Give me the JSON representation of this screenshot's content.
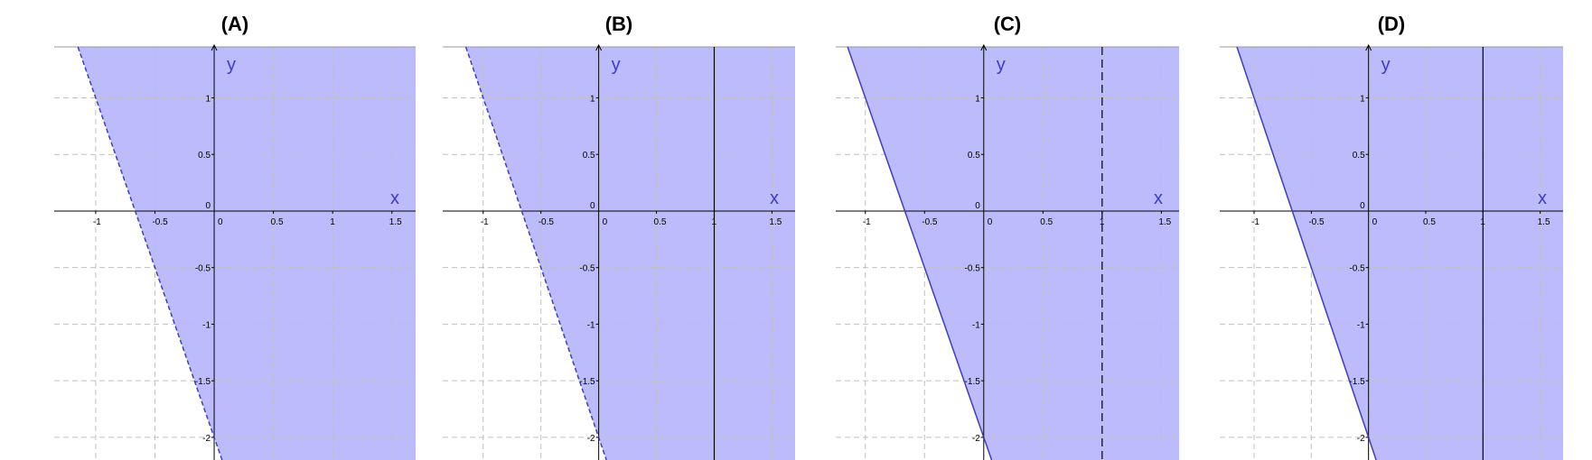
{
  "chart_data": [
    {
      "type": "area",
      "title": "(A)",
      "xlabel": "x",
      "ylabel": "y",
      "xlim": [
        -1.35,
        1.7
      ],
      "ylim": [
        -2.2,
        1.45
      ],
      "x_ticks": [
        "-1",
        "-0.5",
        "0",
        "0.5",
        "1",
        "1.5"
      ],
      "y_ticks": [
        "1",
        "0.5",
        "0",
        "-0.5",
        "-1",
        "-1.5",
        "-2"
      ],
      "x_tick_values": [
        -1,
        -0.5,
        0,
        0.5,
        1,
        1.5
      ],
      "y_tick_values": [
        1,
        0.5,
        0,
        -0.5,
        -1,
        -1.5,
        -2
      ],
      "grid": true,
      "boundary": {
        "slope": -3,
        "intercept": -2,
        "style": "dashed"
      },
      "shaded_region": "y > -3x - 2",
      "fill_color": "#bcbcfc",
      "boundary_color": "#3c3ccc"
    },
    {
      "type": "area",
      "title": "(B)",
      "xlabel": "x",
      "ylabel": "y",
      "xlim": [
        -1.35,
        1.7
      ],
      "ylim": [
        -2.2,
        1.45
      ],
      "x_ticks": [
        "-1",
        "-0.5",
        "0",
        "0.5",
        "1",
        "1.5"
      ],
      "y_ticks": [
        "1",
        "0.5",
        "0",
        "-0.5",
        "-1",
        "-1.5",
        "-2"
      ],
      "x_tick_values": [
        -1,
        -0.5,
        0,
        0.5,
        1,
        1.5
      ],
      "y_tick_values": [
        1,
        0.5,
        0,
        -0.5,
        -1,
        -1.5,
        -2
      ],
      "grid": true,
      "boundary": {
        "slope": -3,
        "intercept": -2,
        "style": "dashed"
      },
      "vertical_line": {
        "x": 1,
        "style": "solid"
      },
      "shaded_region": "y > -3x - 2",
      "fill_color": "#bcbcfc",
      "boundary_color": "#3c3ccc"
    },
    {
      "type": "area",
      "title": "(C)",
      "xlabel": "x",
      "ylabel": "y",
      "xlim": [
        -1.25,
        1.65
      ],
      "ylim": [
        -2.2,
        1.45
      ],
      "x_ticks": [
        "-1",
        "-0.5",
        "0",
        "0.5",
        "1",
        "1.5"
      ],
      "y_ticks": [
        "1",
        "0.5",
        "0",
        "-0.5",
        "-1",
        "-1.5",
        "-2"
      ],
      "x_tick_values": [
        -1,
        -0.5,
        0,
        0.5,
        1,
        1.5
      ],
      "y_tick_values": [
        1,
        0.5,
        0,
        -0.5,
        -1,
        -1.5,
        -2
      ],
      "grid": true,
      "boundary": {
        "slope": -3,
        "intercept": -2,
        "style": "solid"
      },
      "vertical_line": {
        "x": 1,
        "style": "dashed"
      },
      "shaded_region": "y >= -3x - 2",
      "fill_color": "#bcbcfc",
      "boundary_color": "#3c3ccc"
    },
    {
      "type": "area",
      "title": "(D)",
      "xlabel": "x",
      "ylabel": "y",
      "xlim": [
        -1.3,
        1.7
      ],
      "ylim": [
        -2.2,
        1.45
      ],
      "x_ticks": [
        "-1",
        "-0.5",
        "0",
        "0.5",
        "1",
        "1.5"
      ],
      "y_ticks": [
        "1",
        "0.5",
        "0",
        "-0.5",
        "-1",
        "-1.5",
        "-2"
      ],
      "x_tick_values": [
        -1,
        -0.5,
        0,
        0.5,
        1,
        1.5
      ],
      "y_tick_values": [
        1,
        0.5,
        0,
        -0.5,
        -1,
        -1.5,
        -2
      ],
      "grid": true,
      "boundary": {
        "slope": -3,
        "intercept": -2,
        "style": "solid"
      },
      "vertical_line": {
        "x": 1,
        "style": "solid"
      },
      "shaded_region": "y >= -3x - 2",
      "fill_color": "#bcbcfc",
      "boundary_color": "#3c3ccc"
    }
  ]
}
